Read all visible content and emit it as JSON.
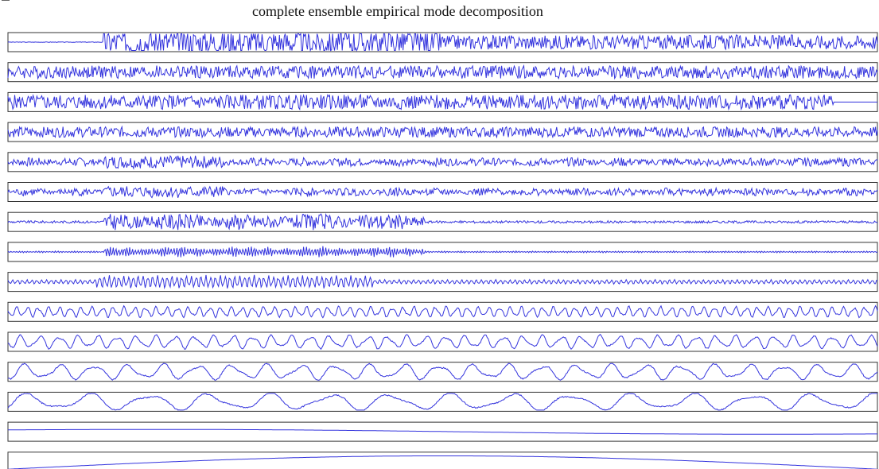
{
  "chart_data": {
    "type": "line",
    "title": "complete ensemble empirical mode decomposition",
    "xlabel": "",
    "ylabel": "",
    "grid": false,
    "legend": "none",
    "line_color": "#3333dd",
    "frame_color": "#333333",
    "series": [
      {
        "activity": "bursty-noise-then-waves",
        "freq": 0.55,
        "amp": 0.45
      },
      {
        "activity": "dense-noise",
        "freq": 1.2,
        "amp": 0.22
      },
      {
        "activity": "dense-noise-ends-early",
        "freq": 1.2,
        "amp": 0.25
      },
      {
        "activity": "dense-noise",
        "freq": 1.0,
        "amp": 0.18
      },
      {
        "activity": "sparse-bursts",
        "freq": 0.9,
        "amp": 0.22
      },
      {
        "activity": "sparse-bursts",
        "freq": 0.75,
        "amp": 0.2
      },
      {
        "activity": "early-bursts",
        "freq": 0.6,
        "amp": 0.28
      },
      {
        "activity": "early-bursts",
        "freq": 0.35,
        "amp": 0.3
      },
      {
        "activity": "early-oscillation",
        "freq": 0.2,
        "amp": 0.35
      },
      {
        "activity": "oscillation",
        "freq": 0.09,
        "amp": 0.3
      },
      {
        "activity": "oscillation",
        "freq": 0.05,
        "amp": 0.38
      },
      {
        "activity": "slow-wave",
        "freq": 0.028,
        "amp": 0.45
      },
      {
        "activity": "slow-wave",
        "freq": 0.016,
        "amp": 0.5
      },
      {
        "activity": "trend",
        "freq": 0.004,
        "amp": 0.28
      },
      {
        "activity": "arch",
        "freq": 0.001,
        "amp": 0.35
      }
    ]
  }
}
